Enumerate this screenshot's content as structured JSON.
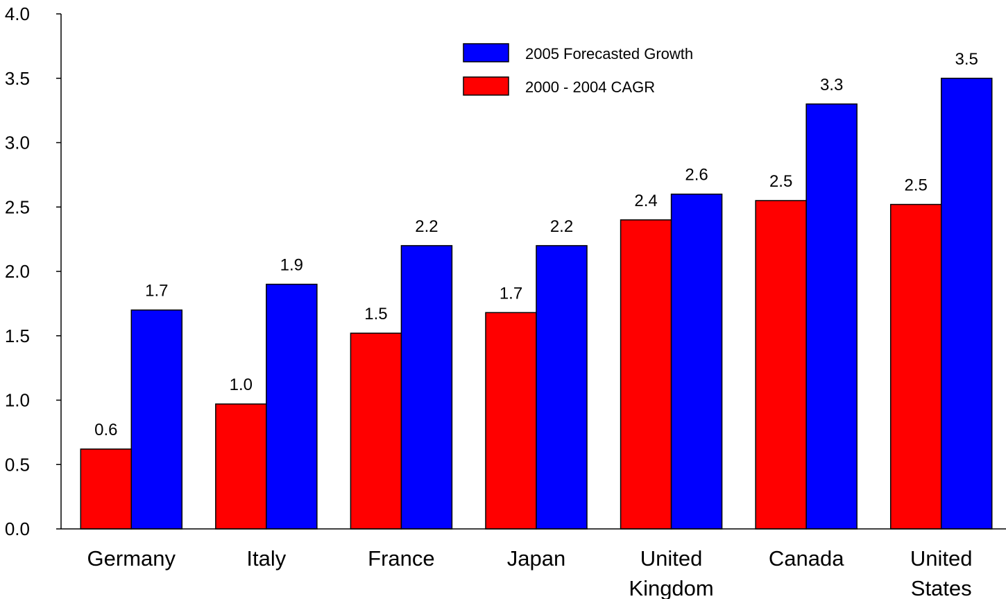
{
  "chart_data": {
    "type": "bar",
    "categories": [
      [
        "Germany"
      ],
      [
        "Italy"
      ],
      [
        "France"
      ],
      [
        "Japan"
      ],
      [
        "United",
        "Kingdom"
      ],
      [
        "Canada"
      ],
      [
        "United",
        "States"
      ]
    ],
    "series": [
      {
        "name": "2000 - 2004 CAGR",
        "color": "#ff0000",
        "values": [
          0.62,
          0.97,
          1.52,
          1.68,
          2.4,
          2.55,
          2.52
        ],
        "labels": [
          "0.6",
          "1.0",
          "1.5",
          "1.7",
          "2.4",
          "2.5",
          "2.5"
        ]
      },
      {
        "name": "2005 Forecasted Growth",
        "color": "#0000ff",
        "values": [
          1.7,
          1.9,
          2.2,
          2.2,
          2.6,
          3.3,
          3.5
        ],
        "labels": [
          "1.7",
          "1.9",
          "2.2",
          "2.2",
          "2.6",
          "3.3",
          "3.5"
        ]
      }
    ],
    "ylim": [
      0,
      4.0
    ],
    "yticks": [
      "0.0",
      "0.5",
      "1.0",
      "1.5",
      "2.0",
      "2.5",
      "3.0",
      "3.5",
      "4.0"
    ],
    "legend_order": [
      "2005 Forecasted Growth",
      "2000 - 2004 CAGR"
    ],
    "legend_position": "top-center",
    "grid": false,
    "title": "",
    "xlabel": "",
    "ylabel": ""
  }
}
